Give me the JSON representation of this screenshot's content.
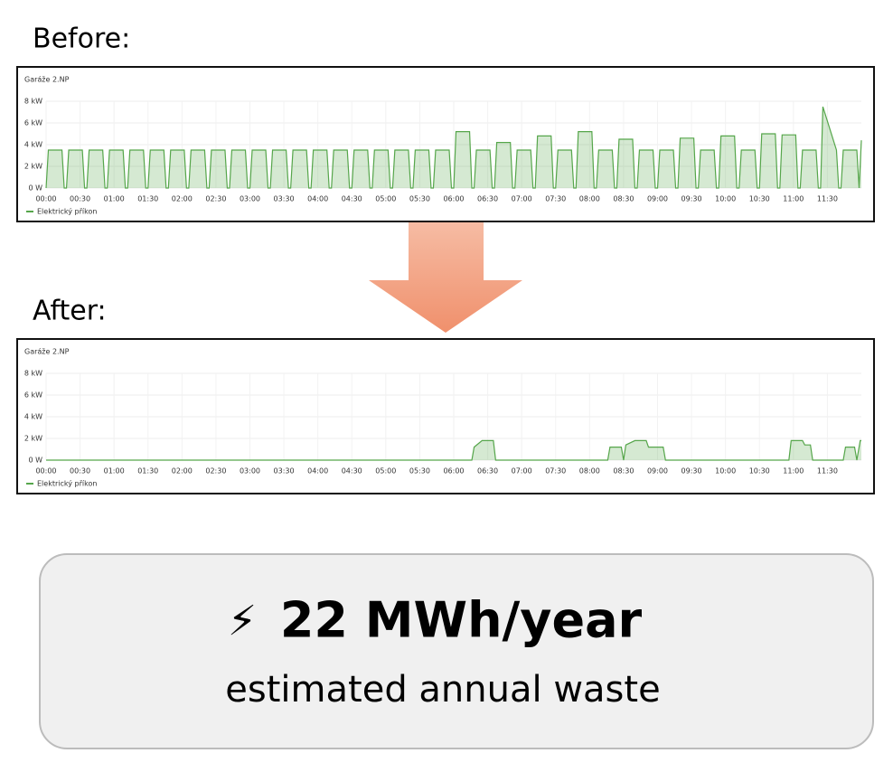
{
  "chart_data": [
    {
      "type": "line",
      "heading": "Before:",
      "title": "Garáže 2.NP",
      "legend": "Elektrický příkon",
      "color": "#56a64b",
      "xlim": [
        0,
        720
      ],
      "ylim": [
        0,
        8
      ],
      "grid": true,
      "yticks": [
        {
          "value": 0,
          "label": "0 W"
        },
        {
          "value": 2,
          "label": "2 kW"
        },
        {
          "value": 4,
          "label": "4 kW"
        },
        {
          "value": 6,
          "label": "6 kW"
        },
        {
          "value": 8,
          "label": "8 kW"
        }
      ],
      "xticks": [
        {
          "value": 0,
          "label": "00:00"
        },
        {
          "value": 30,
          "label": "00:30"
        },
        {
          "value": 60,
          "label": "01:00"
        },
        {
          "value": 90,
          "label": "01:30"
        },
        {
          "value": 120,
          "label": "02:00"
        },
        {
          "value": 150,
          "label": "02:30"
        },
        {
          "value": 180,
          "label": "03:00"
        },
        {
          "value": 210,
          "label": "03:30"
        },
        {
          "value": 240,
          "label": "04:00"
        },
        {
          "value": 270,
          "label": "04:30"
        },
        {
          "value": 300,
          "label": "05:00"
        },
        {
          "value": 330,
          "label": "05:30"
        },
        {
          "value": 360,
          "label": "06:00"
        },
        {
          "value": 390,
          "label": "06:30"
        },
        {
          "value": 420,
          "label": "07:00"
        },
        {
          "value": 450,
          "label": "07:30"
        },
        {
          "value": 480,
          "label": "08:00"
        },
        {
          "value": 510,
          "label": "08:30"
        },
        {
          "value": 540,
          "label": "09:00"
        },
        {
          "value": 570,
          "label": "09:30"
        },
        {
          "value": 600,
          "label": "10:00"
        },
        {
          "value": 630,
          "label": "10:30"
        },
        {
          "value": 660,
          "label": "11:00"
        },
        {
          "value": 690,
          "label": "11:30"
        }
      ],
      "x": [
        0,
        2,
        14,
        16,
        18,
        20,
        32,
        34,
        36,
        38,
        50,
        52,
        54,
        56,
        68,
        70,
        72,
        74,
        86,
        88,
        90,
        92,
        104,
        106,
        108,
        110,
        122,
        124,
        126,
        128,
        140,
        142,
        144,
        146,
        158,
        160,
        162,
        164,
        176,
        178,
        180,
        182,
        194,
        196,
        198,
        200,
        212,
        214,
        216,
        218,
        230,
        232,
        234,
        236,
        248,
        250,
        252,
        254,
        266,
        268,
        270,
        272,
        284,
        286,
        288,
        290,
        302,
        304,
        306,
        308,
        320,
        322,
        324,
        326,
        338,
        340,
        342,
        344,
        356,
        358,
        360,
        362,
        374,
        376,
        378,
        380,
        392,
        394,
        396,
        398,
        410,
        412,
        414,
        416,
        428,
        430,
        432,
        434,
        446,
        448,
        450,
        452,
        464,
        466,
        468,
        470,
        482,
        484,
        486,
        488,
        500,
        502,
        504,
        506,
        518,
        520,
        522,
        524,
        536,
        538,
        540,
        542,
        554,
        556,
        558,
        560,
        572,
        574,
        576,
        578,
        590,
        592,
        594,
        596,
        608,
        610,
        612,
        614,
        626,
        628,
        630,
        632,
        644,
        646,
        648,
        650,
        662,
        664,
        666,
        668,
        680,
        682,
        684,
        686,
        698,
        700,
        702,
        704,
        716,
        718,
        720
      ],
      "values": [
        0,
        3.5,
        3.5,
        0,
        0,
        3.5,
        3.5,
        0,
        0,
        3.5,
        3.5,
        0,
        0,
        3.5,
        3.5,
        0,
        0,
        3.5,
        3.5,
        0,
        0,
        3.5,
        3.5,
        0,
        0,
        3.5,
        3.5,
        0,
        0,
        3.5,
        3.5,
        0,
        0,
        3.5,
        3.5,
        0,
        0,
        3.5,
        3.5,
        0,
        0,
        3.5,
        3.5,
        0,
        0,
        3.5,
        3.5,
        0,
        0,
        3.5,
        3.5,
        0,
        0,
        3.5,
        3.5,
        0,
        0,
        3.5,
        3.5,
        0,
        0,
        3.5,
        3.5,
        0,
        0,
        3.5,
        3.5,
        0,
        0,
        3.5,
        3.5,
        0,
        0,
        3.5,
        3.5,
        0,
        0,
        3.5,
        3.5,
        0,
        0,
        5.2,
        5.2,
        0,
        0,
        3.5,
        3.5,
        0,
        0,
        4.2,
        4.2,
        0,
        0,
        3.5,
        3.5,
        0,
        0,
        4.8,
        4.8,
        0,
        0,
        3.5,
        3.5,
        0,
        0,
        5.2,
        5.2,
        0,
        0,
        3.5,
        3.5,
        0,
        0,
        4.5,
        4.5,
        0,
        0,
        3.5,
        3.5,
        0,
        0,
        3.5,
        3.5,
        0,
        0,
        4.6,
        4.6,
        0,
        0,
        3.5,
        3.5,
        0,
        0,
        4.8,
        4.8,
        0,
        0,
        3.5,
        3.5,
        0,
        0,
        5.0,
        5.0,
        0,
        0,
        4.9,
        4.9,
        0,
        0,
        3.5,
        3.5,
        0,
        0,
        7.5,
        3.5,
        0,
        0,
        3.5,
        3.5,
        0,
        4.4
      ]
    },
    {
      "type": "line",
      "heading": "After:",
      "title": "Garáže 2.NP",
      "legend": "Elektrický příkon",
      "color": "#56a64b",
      "xlim": [
        0,
        720
      ],
      "ylim": [
        0,
        8
      ],
      "grid": true,
      "yticks": [
        {
          "value": 0,
          "label": "0 W"
        },
        {
          "value": 2,
          "label": "2 kW"
        },
        {
          "value": 4,
          "label": "4 kW"
        },
        {
          "value": 6,
          "label": "6 kW"
        },
        {
          "value": 8,
          "label": "8 kW"
        }
      ],
      "xticks": [
        {
          "value": 0,
          "label": "00:00"
        },
        {
          "value": 30,
          "label": "00:30"
        },
        {
          "value": 60,
          "label": "01:00"
        },
        {
          "value": 90,
          "label": "01:30"
        },
        {
          "value": 120,
          "label": "02:00"
        },
        {
          "value": 150,
          "label": "02:30"
        },
        {
          "value": 180,
          "label": "03:00"
        },
        {
          "value": 210,
          "label": "03:30"
        },
        {
          "value": 240,
          "label": "04:00"
        },
        {
          "value": 270,
          "label": "04:30"
        },
        {
          "value": 300,
          "label": "05:00"
        },
        {
          "value": 330,
          "label": "05:30"
        },
        {
          "value": 360,
          "label": "06:00"
        },
        {
          "value": 390,
          "label": "06:30"
        },
        {
          "value": 420,
          "label": "07:00"
        },
        {
          "value": 450,
          "label": "07:30"
        },
        {
          "value": 480,
          "label": "08:00"
        },
        {
          "value": 510,
          "label": "08:30"
        },
        {
          "value": 540,
          "label": "09:00"
        },
        {
          "value": 570,
          "label": "09:30"
        },
        {
          "value": 600,
          "label": "10:00"
        },
        {
          "value": 630,
          "label": "10:30"
        },
        {
          "value": 660,
          "label": "11:00"
        },
        {
          "value": 690,
          "label": "11:30"
        }
      ],
      "x": [
        0,
        376,
        378,
        385,
        395,
        397,
        496,
        498,
        508,
        510,
        512,
        520,
        530,
        532,
        545,
        547,
        656,
        658,
        668,
        670,
        675,
        677,
        704,
        706,
        714,
        716,
        719,
        720
      ],
      "values": [
        0,
        0,
        1.2,
        1.8,
        1.8,
        0,
        0,
        1.2,
        1.2,
        0,
        1.4,
        1.8,
        1.8,
        1.2,
        1.2,
        0,
        0,
        1.8,
        1.8,
        1.4,
        1.4,
        0,
        0,
        1.2,
        1.2,
        0,
        1.8,
        1.8
      ]
    }
  ],
  "summary": {
    "icon": "⚡",
    "value": "22 MWh/year",
    "caption": "estimated annual waste"
  }
}
